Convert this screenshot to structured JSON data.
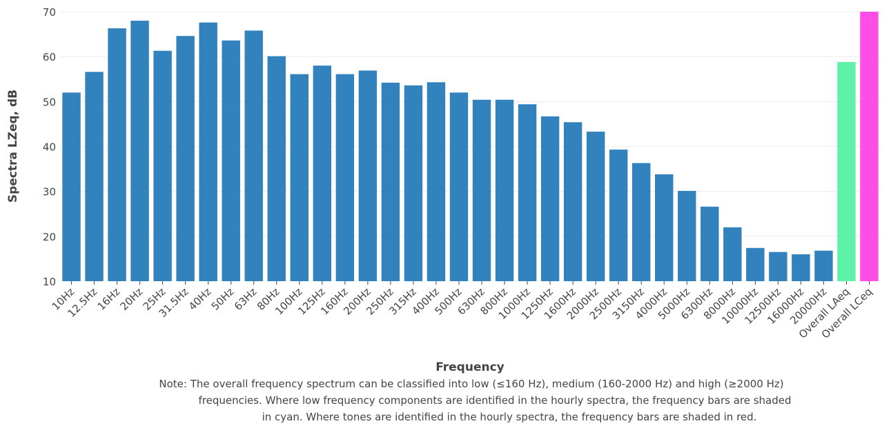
{
  "chart_data": {
    "type": "bar",
    "title": "",
    "xlabel": "Frequency",
    "ylabel": "Spectra LZeq, dB",
    "ylim": [
      10,
      70
    ],
    "yticks": [
      10,
      20,
      30,
      40,
      50,
      60,
      70
    ],
    "grid": true,
    "legend": "none",
    "categories": [
      "10Hz",
      "12.5Hz",
      "16Hz",
      "20Hz",
      "25Hz",
      "31.5Hz",
      "40Hz",
      "50Hz",
      "63Hz",
      "80Hz",
      "100Hz",
      "125Hz",
      "160Hz",
      "200Hz",
      "250Hz",
      "315Hz",
      "400Hz",
      "500Hz",
      "630Hz",
      "800Hz",
      "1000Hz",
      "1250Hz",
      "1600Hz",
      "2000Hz",
      "2500Hz",
      "3150Hz",
      "4000Hz",
      "5000Hz",
      "6300Hz",
      "8000Hz",
      "10000Hz",
      "12500Hz",
      "16000Hz",
      "20000Hz",
      "Overall LAeq",
      "Overall LCeq"
    ],
    "values": [
      52.0,
      56.6,
      66.3,
      68.0,
      61.3,
      64.6,
      67.6,
      63.6,
      65.8,
      60.1,
      56.1,
      58.0,
      56.1,
      56.9,
      54.2,
      53.6,
      54.3,
      52.0,
      50.4,
      50.4,
      49.4,
      46.7,
      45.4,
      43.3,
      39.3,
      36.3,
      33.8,
      30.1,
      26.6,
      22.0,
      17.4,
      16.5,
      16.0,
      16.8,
      58.8,
      70.0
    ],
    "colors": [
      "#3182bd",
      "#3182bd",
      "#3182bd",
      "#3182bd",
      "#3182bd",
      "#3182bd",
      "#3182bd",
      "#3182bd",
      "#3182bd",
      "#3182bd",
      "#3182bd",
      "#3182bd",
      "#3182bd",
      "#3182bd",
      "#3182bd",
      "#3182bd",
      "#3182bd",
      "#3182bd",
      "#3182bd",
      "#3182bd",
      "#3182bd",
      "#3182bd",
      "#3182bd",
      "#3182bd",
      "#3182bd",
      "#3182bd",
      "#3182bd",
      "#3182bd",
      "#3182bd",
      "#3182bd",
      "#3182bd",
      "#3182bd",
      "#3182bd",
      "#3182bd",
      "#5ef2a8",
      "#ff4de8"
    ]
  },
  "note": {
    "lines": [
      "Note: The overall frequency spectrum can be classified into low (≤160 Hz), medium (160-2000 Hz) and high (≥2000 Hz)",
      "frequencies. Where low frequency components are identified in the hourly spectra, the frequency bars are shaded",
      "in cyan. Where tones are identified in the hourly spectra, the frequency bars are shaded in red."
    ]
  }
}
